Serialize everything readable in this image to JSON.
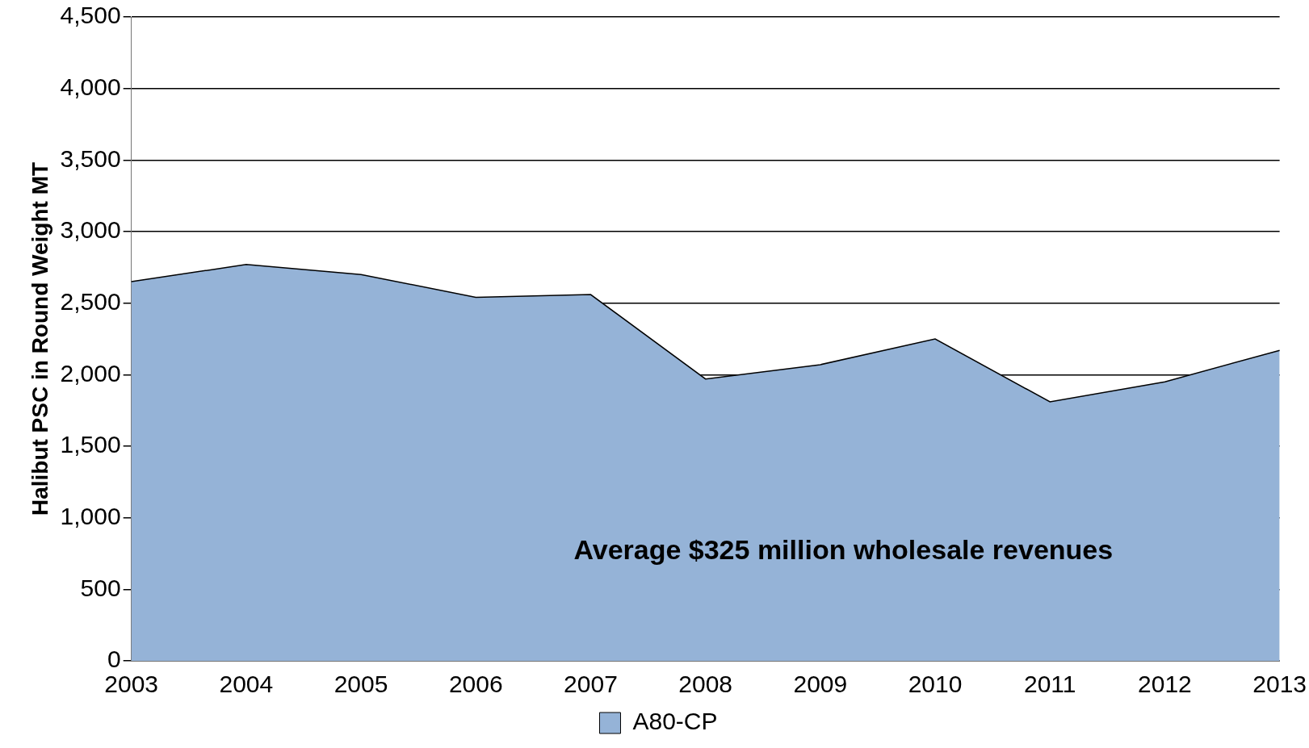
{
  "chart_data": {
    "type": "area",
    "ylabel": "Halibut PSC in Round Weight MT",
    "categories": [
      "2003",
      "2004",
      "2005",
      "2006",
      "2007",
      "2008",
      "2009",
      "2010",
      "2011",
      "2012",
      "2013"
    ],
    "series": [
      {
        "name": "A80-CP",
        "color": "#95b3d7",
        "values": [
          2650,
          2770,
          2700,
          2540,
          2560,
          1970,
          2070,
          2250,
          1810,
          1950,
          2170
        ]
      }
    ],
    "ylim": [
      0,
      4500
    ],
    "yticks": [
      0,
      500,
      {
        "value": 1000,
        "label": "1,000"
      },
      {
        "value": 1500,
        "label": "1,500"
      },
      {
        "value": 2000,
        "label": "2,000"
      },
      {
        "value": 2500,
        "label": "2,500"
      },
      {
        "value": 3000,
        "label": "3,000"
      },
      {
        "value": 3500,
        "label": "3,500"
      },
      {
        "value": 4000,
        "label": "4,000"
      },
      {
        "value": 4500,
        "label": "4,500"
      }
    ],
    "grid": "y",
    "legend": "bottom",
    "annotations": [
      "Average $325 million wholesale revenues"
    ]
  }
}
